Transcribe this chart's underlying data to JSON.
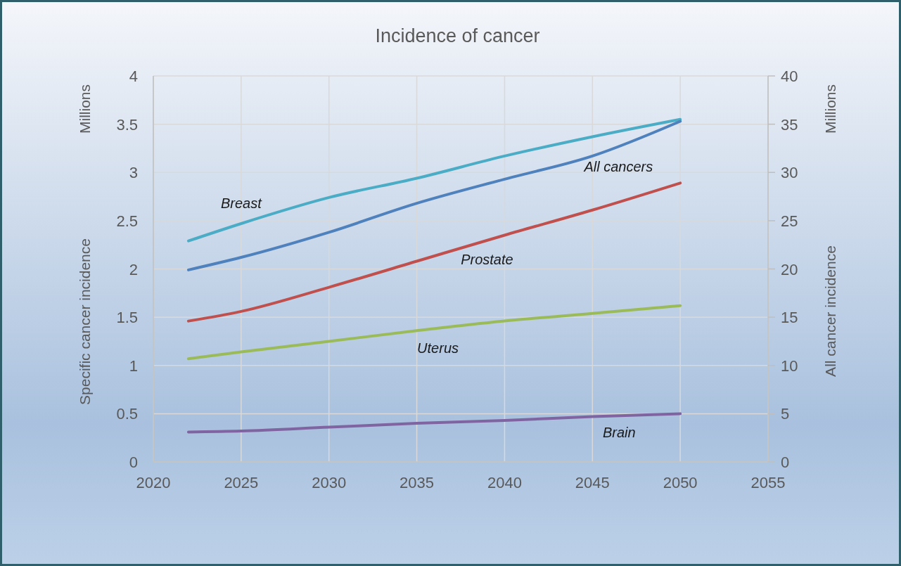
{
  "chart_data": {
    "type": "line",
    "title": "Incidence of cancer",
    "ylabel": "Specific cancer incidence",
    "y2label": "All cancer incidence",
    "annotations": [
      "Millions",
      "Millions"
    ],
    "x": [
      2022,
      2025,
      2030,
      2035,
      2040,
      2045,
      2050
    ],
    "xlim": [
      2020,
      2055
    ],
    "xticks": [
      2020,
      2025,
      2030,
      2035,
      2040,
      2045,
      2050,
      2055
    ],
    "ylim": [
      0,
      4
    ],
    "yticks": [
      0,
      0.5,
      1,
      1.5,
      2,
      2.5,
      3,
      3.5,
      4
    ],
    "y2lim": [
      0,
      40
    ],
    "y2ticks": [
      0,
      5,
      10,
      15,
      20,
      25,
      30,
      35,
      40
    ],
    "grid": true,
    "marker": "none",
    "line_style": "solid",
    "series": [
      {
        "name": "Breast",
        "color": "#4bacc6",
        "values": [
          2.29,
          2.47,
          2.74,
          2.94,
          3.17,
          3.37,
          3.55
        ]
      },
      {
        "name": "All cancers",
        "color": "#4f81bd",
        "axis": "y2",
        "values": [
          19.9,
          21.2,
          23.8,
          26.8,
          29.3,
          31.7,
          35.3
        ]
      },
      {
        "name": "Prostate",
        "color": "#c0504d",
        "values": [
          1.46,
          1.56,
          1.81,
          2.08,
          2.35,
          2.61,
          2.89
        ]
      },
      {
        "name": "Uterus",
        "color": "#9bbb59",
        "values": [
          1.07,
          1.14,
          1.25,
          1.36,
          1.46,
          1.54,
          1.62
        ]
      },
      {
        "name": "Brain",
        "color": "#8064a2",
        "values": [
          0.31,
          0.32,
          0.36,
          0.4,
          0.43,
          0.47,
          0.5
        ]
      }
    ]
  }
}
